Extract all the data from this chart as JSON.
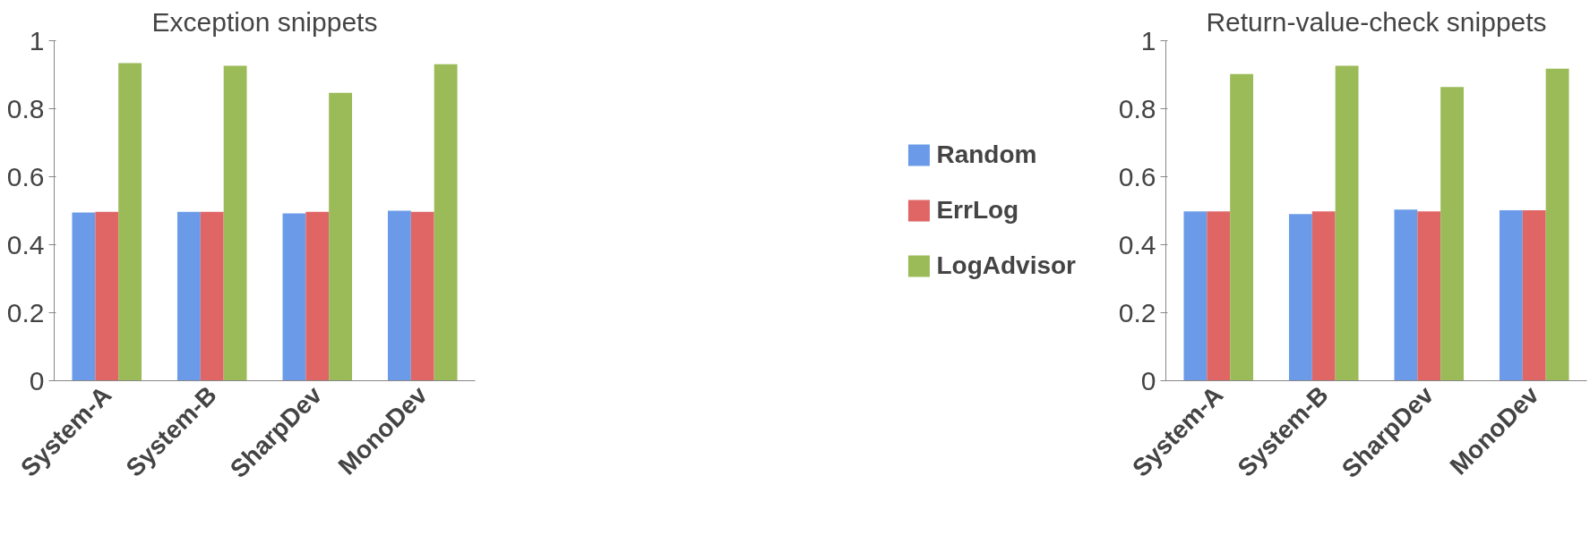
{
  "chart_data": [
    {
      "type": "bar",
      "title": "Exception snippets",
      "categories": [
        "System-A",
        "System-B",
        "SharpDev",
        "MonoDev"
      ],
      "ylim": [
        0,
        1
      ],
      "yticks": [
        0,
        0.2,
        0.4,
        0.6,
        0.8,
        1
      ],
      "grid": false,
      "legend": "right",
      "series": [
        {
          "name": "Random",
          "color": "#6b9be8",
          "values": [
            0.495,
            0.497,
            0.492,
            0.5
          ]
        },
        {
          "name": "ErrLog",
          "color": "#e06666",
          "values": [
            0.497,
            0.497,
            0.497,
            0.497
          ]
        },
        {
          "name": "LogAdvisor",
          "color": "#9bbb59",
          "values": [
            0.934,
            0.926,
            0.847,
            0.931
          ]
        }
      ]
    },
    {
      "type": "bar",
      "title": "Return-value-check snippets",
      "categories": [
        "System-A",
        "System-B",
        "SharpDev",
        "MonoDev"
      ],
      "ylim": [
        0,
        1
      ],
      "yticks": [
        0,
        0.2,
        0.4,
        0.6,
        0.8,
        1
      ],
      "grid": false,
      "legend": false,
      "series": [
        {
          "color": "#6b9be8",
          "values": [
            0.498,
            0.49,
            0.503,
            0.501
          ]
        },
        {
          "color": "#e06666",
          "values": [
            0.498,
            0.498,
            0.498,
            0.501
          ]
        },
        {
          "color": "#9bbb59",
          "values": [
            0.902,
            0.926,
            0.864,
            0.918
          ]
        }
      ]
    }
  ]
}
